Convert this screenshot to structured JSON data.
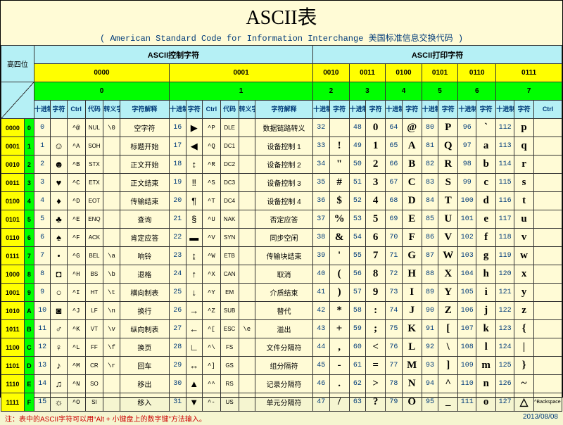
{
  "title": "ASCII表",
  "subtitle": "( American Standard Code for Information Interchange  美国标准信息交换代码 )",
  "hdr_hi": "高四位",
  "hdr_lo": "低四位",
  "group_ctrl": "ASCII控制字符",
  "group_print": "ASCII打印字符",
  "bins": [
    "0000",
    "0001",
    "0010",
    "0011",
    "0100",
    "0101",
    "0110",
    "0111"
  ],
  "idxs": [
    "0",
    "1",
    "2",
    "3",
    "4",
    "5",
    "6",
    "7"
  ],
  "col_dec": "十进制",
  "col_glyph": "字符",
  "col_ctrl": "Ctrl",
  "col_code": "代码",
  "col_esc": "转义字符",
  "col_desc": "字符解释",
  "row_bins": [
    "0000",
    "0001",
    "0010",
    "0011",
    "0100",
    "0101",
    "0110",
    "0111",
    "1000",
    "1001",
    "1010",
    "1011",
    "1100",
    "1101",
    "1110",
    "1111"
  ],
  "row_idxs": [
    "0",
    "1",
    "2",
    "3",
    "4",
    "5",
    "6",
    "7",
    "8",
    "9",
    "A",
    "B",
    "C",
    "D",
    "E",
    "F"
  ],
  "g0": [
    {
      "dec": "0",
      "glyph": "",
      "ctrl": "^@",
      "code": "NUL",
      "esc": "\\0",
      "desc": "空字符"
    },
    {
      "dec": "1",
      "glyph": "☺",
      "ctrl": "^A",
      "code": "SOH",
      "esc": "",
      "desc": "标题开始"
    },
    {
      "dec": "2",
      "glyph": "☻",
      "ctrl": "^B",
      "code": "STX",
      "esc": "",
      "desc": "正文开始"
    },
    {
      "dec": "3",
      "glyph": "♥",
      "ctrl": "^C",
      "code": "ETX",
      "esc": "",
      "desc": "正文结束"
    },
    {
      "dec": "4",
      "glyph": "♦",
      "ctrl": "^D",
      "code": "EOT",
      "esc": "",
      "desc": "传输结束"
    },
    {
      "dec": "5",
      "glyph": "♣",
      "ctrl": "^E",
      "code": "ENQ",
      "esc": "",
      "desc": "查询"
    },
    {
      "dec": "6",
      "glyph": "♠",
      "ctrl": "^F",
      "code": "ACK",
      "esc": "",
      "desc": "肯定应答"
    },
    {
      "dec": "7",
      "glyph": "•",
      "ctrl": "^G",
      "code": "BEL",
      "esc": "\\a",
      "desc": "响铃"
    },
    {
      "dec": "8",
      "glyph": "◘",
      "ctrl": "^H",
      "code": "BS",
      "esc": "\\b",
      "desc": "退格"
    },
    {
      "dec": "9",
      "glyph": "○",
      "ctrl": "^I",
      "code": "HT",
      "esc": "\\t",
      "desc": "横向制表"
    },
    {
      "dec": "10",
      "glyph": "◙",
      "ctrl": "^J",
      "code": "LF",
      "esc": "\\n",
      "desc": "换行"
    },
    {
      "dec": "11",
      "glyph": "♂",
      "ctrl": "^K",
      "code": "VT",
      "esc": "\\v",
      "desc": "纵向制表"
    },
    {
      "dec": "12",
      "glyph": "♀",
      "ctrl": "^L",
      "code": "FF",
      "esc": "\\f",
      "desc": "换页"
    },
    {
      "dec": "13",
      "glyph": "♪",
      "ctrl": "^M",
      "code": "CR",
      "esc": "\\r",
      "desc": "回车"
    },
    {
      "dec": "14",
      "glyph": "♫",
      "ctrl": "^N",
      "code": "SO",
      "esc": "",
      "desc": "移出"
    },
    {
      "dec": "15",
      "glyph": "☼",
      "ctrl": "^O",
      "code": "SI",
      "esc": "",
      "desc": "移入"
    }
  ],
  "g1": [
    {
      "dec": "16",
      "glyph": "▶",
      "ctrl": "^P",
      "code": "DLE",
      "esc": "",
      "desc": "数据链路转义"
    },
    {
      "dec": "17",
      "glyph": "◀",
      "ctrl": "^Q",
      "code": "DC1",
      "esc": "",
      "desc": "设备控制 1"
    },
    {
      "dec": "18",
      "glyph": "↕",
      "ctrl": "^R",
      "code": "DC2",
      "esc": "",
      "desc": "设备控制 2"
    },
    {
      "dec": "19",
      "glyph": "‼",
      "ctrl": "^S",
      "code": "DC3",
      "esc": "",
      "desc": "设备控制 3"
    },
    {
      "dec": "20",
      "glyph": "¶",
      "ctrl": "^T",
      "code": "DC4",
      "esc": "",
      "desc": "设备控制 4"
    },
    {
      "dec": "21",
      "glyph": "§",
      "ctrl": "^U",
      "code": "NAK",
      "esc": "",
      "desc": "否定应答"
    },
    {
      "dec": "22",
      "glyph": "▬",
      "ctrl": "^V",
      "code": "SYN",
      "esc": "",
      "desc": "同步空闲"
    },
    {
      "dec": "23",
      "glyph": "↨",
      "ctrl": "^W",
      "code": "ETB",
      "esc": "",
      "desc": "传输块结束"
    },
    {
      "dec": "24",
      "glyph": "↑",
      "ctrl": "^X",
      "code": "CAN",
      "esc": "",
      "desc": "取消"
    },
    {
      "dec": "25",
      "glyph": "↓",
      "ctrl": "^Y",
      "code": "EM",
      "esc": "",
      "desc": "介质结束"
    },
    {
      "dec": "26",
      "glyph": "→",
      "ctrl": "^Z",
      "code": "SUB",
      "esc": "",
      "desc": "替代"
    },
    {
      "dec": "27",
      "glyph": "←",
      "ctrl": "^[",
      "code": "ESC",
      "esc": "\\e",
      "desc": "溢出"
    },
    {
      "dec": "28",
      "glyph": "∟",
      "ctrl": "^\\",
      "code": "FS",
      "esc": "",
      "desc": "文件分隔符"
    },
    {
      "dec": "29",
      "glyph": "↔",
      "ctrl": "^]",
      "code": "GS",
      "esc": "",
      "desc": "组分隔符"
    },
    {
      "dec": "30",
      "glyph": "▲",
      "ctrl": "^^",
      "code": "RS",
      "esc": "",
      "desc": "记录分隔符"
    },
    {
      "dec": "31",
      "glyph": "▼",
      "ctrl": "^-",
      "code": "US",
      "esc": "",
      "desc": "单元分隔符"
    }
  ],
  "g2": [
    [
      "32",
      ""
    ],
    [
      "33",
      "!"
    ],
    [
      "34",
      "\""
    ],
    [
      "35",
      "#"
    ],
    [
      "36",
      "$"
    ],
    [
      "37",
      "%"
    ],
    [
      "38",
      "&"
    ],
    [
      "39",
      "'"
    ],
    [
      "40",
      "("
    ],
    [
      "41",
      ")"
    ],
    [
      "42",
      "*"
    ],
    [
      "43",
      "+"
    ],
    [
      "44",
      ","
    ],
    [
      "45",
      "-"
    ],
    [
      "46",
      "."
    ],
    [
      "47",
      "/"
    ]
  ],
  "g3": [
    [
      "48",
      "0"
    ],
    [
      "49",
      "1"
    ],
    [
      "50",
      "2"
    ],
    [
      "51",
      "3"
    ],
    [
      "52",
      "4"
    ],
    [
      "53",
      "5"
    ],
    [
      "54",
      "6"
    ],
    [
      "55",
      "7"
    ],
    [
      "56",
      "8"
    ],
    [
      "57",
      "9"
    ],
    [
      "58",
      ":"
    ],
    [
      "59",
      ";"
    ],
    [
      "60",
      "<"
    ],
    [
      "61",
      "="
    ],
    [
      "62",
      ">"
    ],
    [
      "63",
      "?"
    ]
  ],
  "g4": [
    [
      "64",
      "@"
    ],
    [
      "65",
      "A"
    ],
    [
      "66",
      "B"
    ],
    [
      "67",
      "C"
    ],
    [
      "68",
      "D"
    ],
    [
      "69",
      "E"
    ],
    [
      "70",
      "F"
    ],
    [
      "71",
      "G"
    ],
    [
      "72",
      "H"
    ],
    [
      "73",
      "I"
    ],
    [
      "74",
      "J"
    ],
    [
      "75",
      "K"
    ],
    [
      "76",
      "L"
    ],
    [
      "77",
      "M"
    ],
    [
      "78",
      "N"
    ],
    [
      "79",
      "O"
    ]
  ],
  "g5": [
    [
      "80",
      "P"
    ],
    [
      "81",
      "Q"
    ],
    [
      "82",
      "R"
    ],
    [
      "83",
      "S"
    ],
    [
      "84",
      "T"
    ],
    [
      "85",
      "U"
    ],
    [
      "86",
      "V"
    ],
    [
      "87",
      "W"
    ],
    [
      "88",
      "X"
    ],
    [
      "89",
      "Y"
    ],
    [
      "90",
      "Z"
    ],
    [
      "91",
      "["
    ],
    [
      "92",
      "\\"
    ],
    [
      "93",
      "]"
    ],
    [
      "94",
      "^"
    ],
    [
      "95",
      "_"
    ]
  ],
  "g6": [
    [
      "96",
      "`"
    ],
    [
      "97",
      "a"
    ],
    [
      "98",
      "b"
    ],
    [
      "99",
      "c"
    ],
    [
      "100",
      "d"
    ],
    [
      "101",
      "e"
    ],
    [
      "102",
      "f"
    ],
    [
      "103",
      "g"
    ],
    [
      "104",
      "h"
    ],
    [
      "105",
      "i"
    ],
    [
      "106",
      "j"
    ],
    [
      "107",
      "k"
    ],
    [
      "108",
      "l"
    ],
    [
      "109",
      "m"
    ],
    [
      "110",
      "n"
    ],
    [
      "111",
      "o"
    ]
  ],
  "g7": [
    [
      "112",
      "p"
    ],
    [
      "113",
      "q"
    ],
    [
      "114",
      "r"
    ],
    [
      "115",
      "s"
    ],
    [
      "116",
      "t"
    ],
    [
      "117",
      "u"
    ],
    [
      "118",
      "v"
    ],
    [
      "119",
      "w"
    ],
    [
      "120",
      "x"
    ],
    [
      "121",
      "y"
    ],
    [
      "122",
      "z"
    ],
    [
      "123",
      "{"
    ],
    [
      "124",
      "|"
    ],
    [
      "125",
      "}"
    ],
    [
      "126",
      "~"
    ],
    [
      "127",
      "△"
    ]
  ],
  "del_note": "^Backspace 代码: DEL",
  "footer_note": "注：表中的ASCII字符可以用“Alt + 小键盘上的数字键”方法输入。",
  "footer_date": "2013/08/08"
}
